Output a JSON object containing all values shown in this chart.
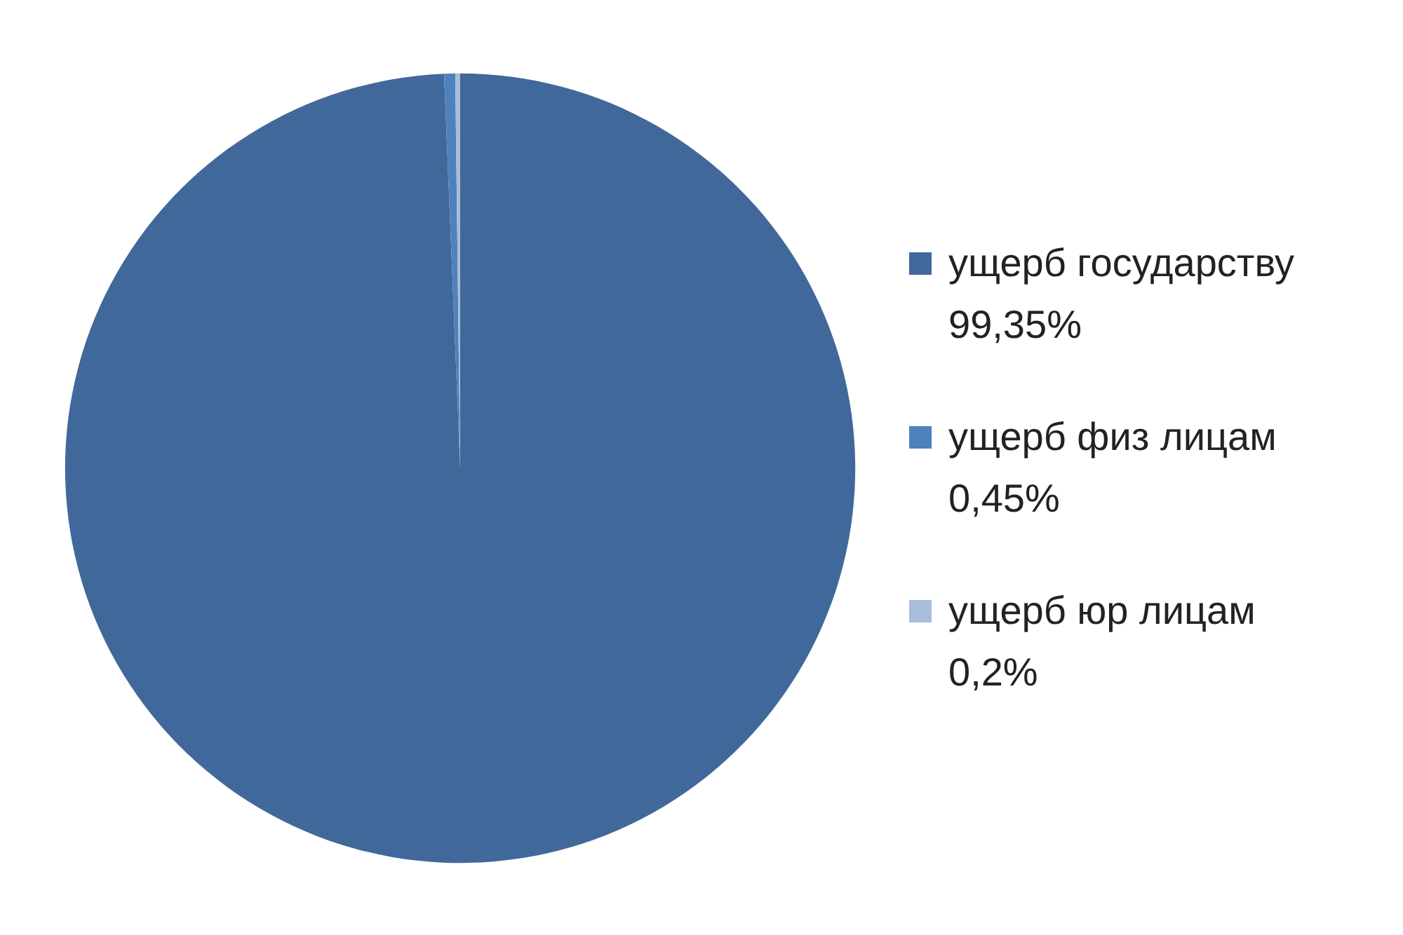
{
  "chart_data": {
    "type": "pie",
    "categories": [
      "ущерб государству",
      "ущерб физ лицам",
      "ущерб юр лицам"
    ],
    "values": [
      99.35,
      0.45,
      0.2
    ],
    "value_labels": [
      "99,35%",
      "0,45%",
      "0,2%"
    ],
    "colors": [
      "#41689a",
      "#4f81bd",
      "#a9bcd9"
    ],
    "legend": "right"
  }
}
